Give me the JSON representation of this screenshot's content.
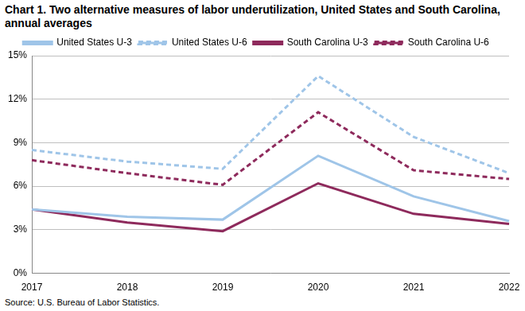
{
  "chart_data": {
    "type": "line",
    "title": "Chart 1. Two alternative measures of labor underutilization, United States and South Carolina, annual averages",
    "source": "Source: U.S. Bureau of Labor Statistics.",
    "categories": [
      "2017",
      "2018",
      "2019",
      "2020",
      "2021",
      "2022"
    ],
    "series": [
      {
        "name": "United States U-3",
        "color": "#9fc5e8",
        "line_style": "solid",
        "values": [
          4.4,
          3.9,
          3.7,
          8.1,
          5.3,
          3.6
        ]
      },
      {
        "name": "United States U-6",
        "color": "#9fc5e8",
        "line_style": "dashed",
        "values": [
          8.5,
          7.7,
          7.2,
          13.6,
          9.4,
          6.9
        ]
      },
      {
        "name": "South Carolina U-3",
        "color": "#8e2a5c",
        "line_style": "solid",
        "values": [
          4.4,
          3.5,
          2.9,
          6.2,
          4.1,
          3.4
        ]
      },
      {
        "name": "South Carolina U-6",
        "color": "#8e2a5c",
        "line_style": "dashed",
        "values": [
          7.8,
          6.9,
          6.1,
          11.1,
          7.1,
          6.5
        ]
      }
    ],
    "ylim": [
      0,
      15
    ],
    "yticks": [
      {
        "value": 0,
        "label": "0%"
      },
      {
        "value": 3,
        "label": "3%"
      },
      {
        "value": 6,
        "label": "6%"
      },
      {
        "value": 9,
        "label": "9%"
      },
      {
        "value": 12,
        "label": "12%"
      },
      {
        "value": 15,
        "label": "15%"
      }
    ],
    "grid": true,
    "legend": "top"
  }
}
